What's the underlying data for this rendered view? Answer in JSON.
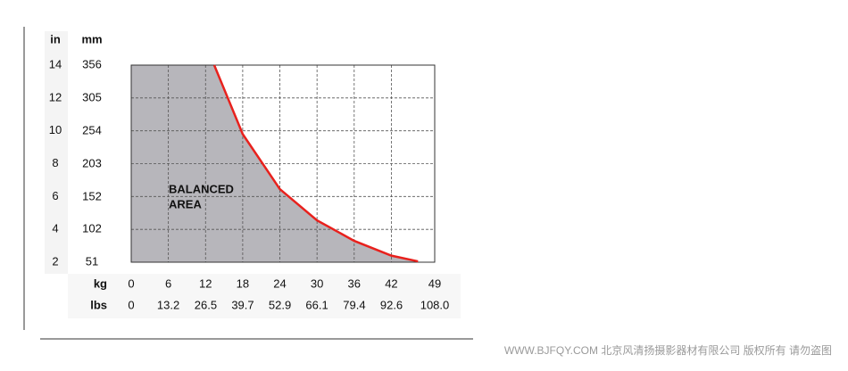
{
  "chart_data": {
    "type": "area-line",
    "y_unit_label": "in",
    "y2_unit_label": "mm",
    "x_unit_label": "kg",
    "x2_unit_label": "lbs",
    "annotation": [
      "BALANCED",
      "AREA"
    ],
    "watermark": "WWW.BJFQY.COM 北京风清扬摄影器材有限公司 版权所有 请勿盗图",
    "xlim": [
      0,
      49
    ],
    "xticks": [
      0,
      6,
      12,
      18,
      24,
      30,
      36,
      42,
      49
    ],
    "x2lim": [
      0,
      108
    ],
    "x2ticks": [
      0,
      13.2,
      26.5,
      39.7,
      52.9,
      66.1,
      79.4,
      92.6,
      {
        "value": 108,
        "label": "108.0"
      }
    ],
    "ylim": [
      2,
      14
    ],
    "yticks": [
      2,
      4,
      6,
      8,
      10,
      12,
      14
    ],
    "y2lim": [
      51,
      356
    ],
    "y2ticks": [
      51,
      102,
      152,
      203,
      254,
      305,
      356
    ],
    "grid": true,
    "x": [
      13.4,
      18,
      24,
      30,
      36,
      42,
      46.3
    ],
    "values": [
      14,
      9.8,
      6.45,
      4.55,
      3.3,
      2.4,
      2.05
    ],
    "color": "#e8211d",
    "area_color": "#b7b6bb"
  }
}
